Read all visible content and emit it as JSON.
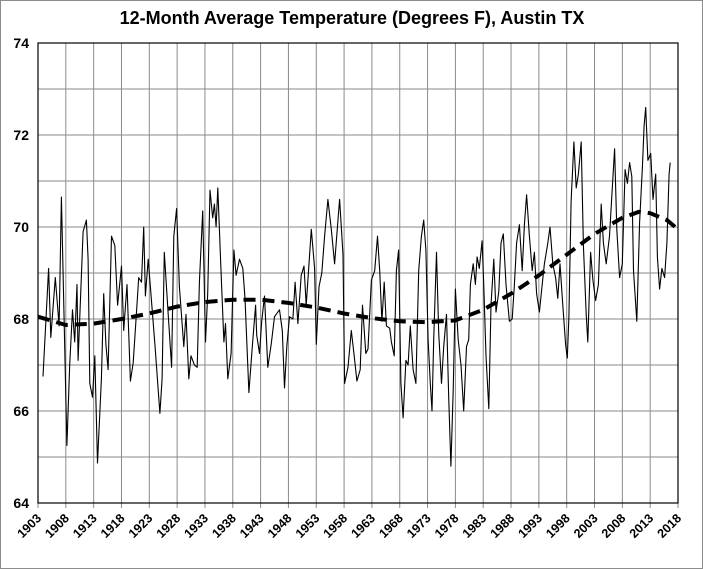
{
  "chart_data": {
    "type": "line",
    "title": "12-Month Average Temperature  (Degrees F), Austin TX",
    "xlabel": "",
    "ylabel": "",
    "xlim": [
      1903,
      2018
    ],
    "ylim": [
      64,
      74
    ],
    "grid": true,
    "legend": "none",
    "x_ticks": [
      "1903",
      "1908",
      "1913",
      "1918",
      "1923",
      "1928",
      "1933",
      "1938",
      "1943",
      "1948",
      "1953",
      "1958",
      "1963",
      "1968",
      "1973",
      "1978",
      "1983",
      "1988",
      "1993",
      "1998",
      "2003",
      "2008",
      "2013",
      "2018"
    ],
    "y_ticks": [
      "64",
      "66",
      "68",
      "70",
      "72",
      "74"
    ],
    "series": [
      {
        "style": "solid-thin",
        "color": "#000000",
        "x": [
          1903.9,
          1904.9,
          1905.3,
          1906.1,
          1906.8,
          1907.2,
          1908.2,
          1908.7,
          1909.2,
          1909.6,
          1910.0,
          1910.2,
          1911.1,
          1911.7,
          1912.0,
          1912.3,
          1912.8,
          1913.2,
          1913.7,
          1914.4,
          1914.8,
          1915.2,
          1915.6,
          1916.2,
          1916.8,
          1917.3,
          1918.0,
          1918.4,
          1919.0,
          1919.6,
          1920.1,
          1920.7,
          1921.1,
          1921.6,
          1922.0,
          1922.3,
          1922.8,
          1924.0,
          1924.9,
          1925.3,
          1925.7,
          1926.4,
          1927.0,
          1927.4,
          1927.9,
          1928.4,
          1929.2,
          1929.6,
          1930.1,
          1930.5,
          1931.1,
          1931.6,
          1932.0,
          1932.6,
          1933.1,
          1933.5,
          1933.9,
          1934.4,
          1934.7,
          1935.0,
          1935.3,
          1935.9,
          1936.4,
          1936.7,
          1937.1,
          1937.7,
          1938.2,
          1938.6,
          1939.2,
          1939.8,
          1940.2,
          1940.9,
          1941.5,
          1942.1,
          1942.3,
          1942.8,
          1943.2,
          1943.7,
          1944.3,
          1944.9,
          1945.5,
          1946.4,
          1946.9,
          1947.3,
          1947.7,
          1948.2,
          1948.8,
          1949.2,
          1949.7,
          1950.3,
          1950.8,
          1951.2,
          1951.7,
          1952.1,
          1952.7,
          1953.0,
          1953.5,
          1954.0,
          1954.5,
          1955.1,
          1955.7,
          1956.3,
          1956.7,
          1957.2,
          1957.8,
          1958.1,
          1958.7,
          1959.3,
          1959.9,
          1960.3,
          1960.9,
          1961.3,
          1961.9,
          1962.3,
          1962.9,
          1963.5,
          1964.0,
          1964.4,
          1964.8,
          1965.2,
          1965.6,
          1966.2,
          1966.5,
          1967.0,
          1967.4,
          1967.8,
          1968.2,
          1968.6,
          1969.1,
          1969.5,
          1969.9,
          1970.4,
          1970.9,
          1971.4,
          1971.9,
          1972.3,
          1972.7,
          1973.1,
          1973.5,
          1973.8,
          1974.1,
          1974.6,
          1975.0,
          1975.5,
          1975.9,
          1976.4,
          1976.8,
          1977.2,
          1977.6,
          1978.0,
          1978.5,
          1979.0,
          1979.5,
          1980.0,
          1980.4,
          1980.7,
          1981.2,
          1981.6,
          1981.9,
          1982.3,
          1982.8,
          1983.1,
          1983.5,
          1984.0,
          1984.4,
          1984.9,
          1985.3,
          1985.8,
          1986.2,
          1986.6,
          1987.1,
          1987.7,
          1988.2,
          1988.6,
          1989.0,
          1989.5,
          1990.0,
          1990.4,
          1990.8,
          1991.3,
          1991.8,
          1992.2,
          1992.6,
          1993.1,
          1993.6,
          1994.0,
          1994.6,
          1995.0,
          1995.5,
          1996.0,
          1996.4,
          1996.8,
          1997.3,
          1997.8,
          1998.1,
          1998.4,
          1998.8,
          1999.3,
          1999.7,
          2000.1,
          2000.6,
          2001.0,
          2001.5,
          2001.8,
          2002.3,
          2002.7,
          2003.2,
          2003.7,
          2004.2,
          2004.6,
          2005.1,
          2005.7,
          2006.2,
          2006.6,
          2007.0,
          2007.5,
          2008.0,
          2008.5,
          2008.9,
          2009.3,
          2009.7,
          2010.0,
          2010.6,
          2011.1,
          2011.6,
          2011.9,
          2012.2,
          2012.6,
          2013.1,
          2013.5,
          2014.0,
          2014.3,
          2014.7,
          2015.1,
          2015.6,
          2016.0,
          2016.4,
          2016.6
        ],
        "y": [
          66.75,
          69.1,
          67.6,
          68.9,
          67.85,
          70.65,
          65.25,
          67.0,
          68.2,
          67.5,
          68.75,
          67.1,
          69.9,
          70.15,
          69.3,
          66.6,
          66.3,
          67.2,
          64.87,
          66.7,
          68.55,
          67.45,
          66.9,
          69.8,
          69.6,
          68.3,
          69.15,
          67.75,
          68.75,
          66.65,
          67.05,
          68.15,
          68.9,
          68.8,
          70.0,
          68.5,
          69.3,
          67.45,
          65.95,
          66.7,
          69.45,
          68.1,
          66.95,
          69.8,
          70.4,
          68.7,
          67.4,
          68.1,
          66.7,
          67.2,
          67.0,
          66.95,
          68.8,
          70.35,
          67.5,
          68.55,
          70.8,
          70.2,
          70.5,
          70.0,
          70.85,
          69.0,
          67.5,
          67.9,
          66.7,
          67.25,
          69.5,
          68.95,
          69.3,
          69.1,
          68.45,
          66.4,
          67.4,
          68.3,
          67.65,
          67.25,
          67.95,
          68.5,
          66.95,
          67.45,
          68.05,
          68.2,
          67.75,
          66.5,
          67.4,
          68.05,
          68.0,
          68.8,
          67.9,
          68.95,
          69.15,
          68.3,
          69.2,
          69.95,
          69.1,
          67.45,
          68.7,
          69.0,
          69.8,
          70.6,
          69.95,
          69.2,
          69.85,
          70.6,
          69.4,
          66.6,
          66.95,
          67.75,
          67.1,
          66.65,
          66.9,
          68.3,
          67.25,
          67.35,
          68.85,
          69.05,
          69.8,
          69.05,
          67.95,
          68.8,
          67.85,
          67.8,
          67.5,
          67.2,
          69.05,
          69.5,
          66.6,
          65.85,
          67.1,
          67.0,
          67.85,
          66.9,
          66.6,
          69.05,
          69.8,
          70.15,
          69.5,
          67.55,
          66.6,
          66.0,
          67.55,
          69.45,
          67.7,
          66.6,
          67.4,
          68.1,
          66.3,
          64.8,
          66.45,
          68.65,
          67.55,
          67.0,
          66.0,
          67.4,
          67.55,
          68.75,
          69.2,
          68.75,
          69.35,
          69.1,
          69.7,
          68.7,
          67.2,
          66.05,
          68.3,
          69.3,
          68.15,
          68.6,
          69.65,
          69.85,
          68.75,
          67.95,
          68.0,
          68.75,
          69.65,
          70.05,
          69.05,
          70.05,
          70.7,
          69.8,
          69.05,
          69.45,
          68.55,
          68.15,
          68.75,
          69.2,
          69.65,
          70.0,
          69.2,
          68.9,
          68.45,
          69.2,
          68.3,
          67.45,
          67.15,
          68.05,
          70.55,
          71.85,
          70.85,
          71.15,
          71.85,
          69.6,
          68.1,
          67.5,
          69.45,
          68.85,
          68.4,
          68.75,
          70.5,
          69.65,
          69.2,
          69.8,
          70.85,
          71.7,
          69.95,
          68.9,
          69.2,
          71.25,
          70.95,
          71.4,
          71.1,
          69.05,
          67.95,
          70.1,
          71.3,
          72.2,
          72.6,
          71.45,
          71.6,
          70.6,
          71.15,
          69.35,
          68.65,
          69.1,
          68.9,
          69.65,
          71.15,
          71.4
        ]
      },
      {
        "style": "dashed-thick",
        "color": "#000000",
        "x": [
          1903,
          1908,
          1913,
          1918,
          1923,
          1928,
          1933,
          1938,
          1943,
          1948,
          1953,
          1958,
          1963,
          1968,
          1973,
          1978,
          1983,
          1988,
          1993,
          1998,
          2003,
          2008,
          2011,
          2013,
          2016,
          2018
        ],
        "y": [
          68.05,
          67.87,
          67.9,
          68.0,
          68.12,
          68.27,
          68.37,
          68.42,
          68.42,
          68.35,
          68.25,
          68.12,
          68.02,
          67.95,
          67.93,
          67.97,
          68.2,
          68.55,
          68.95,
          69.4,
          69.85,
          70.2,
          70.33,
          70.3,
          70.15,
          69.95
        ]
      }
    ]
  }
}
